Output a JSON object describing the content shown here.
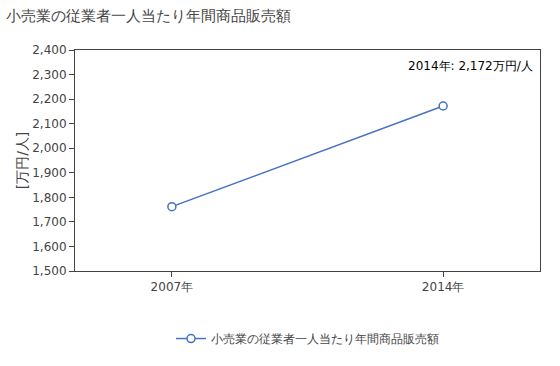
{
  "chart_data": {
    "type": "line",
    "title": "小売業の従業者一人当たり年間商品販売額",
    "y_label": "[万円/人]",
    "annotation": "2014年: 2,172万円/人",
    "x": [
      2007,
      2014
    ],
    "series": [
      {
        "name": "小売業の従業者一人当たり年間商品販売額",
        "color": "#4472C4",
        "marker": "circle",
        "values": [
          1762,
          2172
        ]
      }
    ],
    "xlim": [
      2004.5,
      2016.5
    ],
    "xticks": [
      {
        "value": 2007,
        "label": "2007年"
      },
      {
        "value": 2014,
        "label": "2014年"
      }
    ],
    "ylim": [
      1500,
      2400
    ],
    "yticks": [
      {
        "value": 1500,
        "label": "1,500"
      },
      {
        "value": 1600,
        "label": "1,600"
      },
      {
        "value": 1700,
        "label": "1,700"
      },
      {
        "value": 1800,
        "label": "1,800"
      },
      {
        "value": 1900,
        "label": "1,900"
      },
      {
        "value": 2000,
        "label": "2,000"
      },
      {
        "value": 2100,
        "label": "2,100"
      },
      {
        "value": 2200,
        "label": "2,200"
      },
      {
        "value": 2300,
        "label": "2,300"
      },
      {
        "value": 2400,
        "label": "2,400"
      }
    ],
    "grid": false,
    "legend": "bottom"
  }
}
